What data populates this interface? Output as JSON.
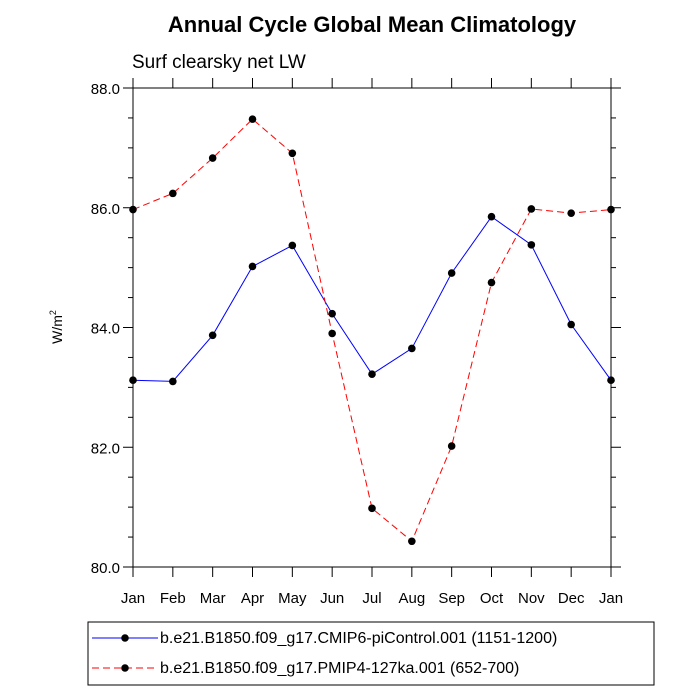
{
  "chart_data": {
    "type": "line",
    "title": "Annual Cycle Global Mean Climatology",
    "subtitle": "Surf clearsky net LW",
    "xlabel": "",
    "ylabel": "W/m",
    "ylabel_superscript": "2",
    "ylim": [
      80.0,
      88.0
    ],
    "yticks": [
      80.0,
      82.0,
      84.0,
      86.0,
      88.0
    ],
    "ytick_labels": [
      "80.0",
      "82.0",
      "84.0",
      "86.0",
      "88.0"
    ],
    "categories": [
      "Jan",
      "Feb",
      "Mar",
      "Apr",
      "May",
      "Jun",
      "Jul",
      "Aug",
      "Sep",
      "Oct",
      "Nov",
      "Dec",
      "Jan"
    ],
    "series": [
      {
        "name": "b.e21.B1850.f09_g17.CMIP6-piControl.001 (1151-1200)",
        "color": "#0000ff",
        "dash": "solid",
        "values": [
          83.12,
          83.1,
          83.87,
          85.02,
          85.37,
          84.23,
          83.22,
          83.65,
          84.91,
          85.85,
          85.38,
          84.05,
          83.12
        ]
      },
      {
        "name": "b.e21.B1850.f09_g17.PMIP4-127ka.001 (652-700)",
        "color": "#ff0000",
        "dash": "dashed",
        "values": [
          85.97,
          86.24,
          86.83,
          87.48,
          86.91,
          83.9,
          80.98,
          80.43,
          82.02,
          84.75,
          85.98,
          85.91,
          85.97
        ]
      }
    ],
    "grid": false,
    "legend_position": "bottom"
  }
}
